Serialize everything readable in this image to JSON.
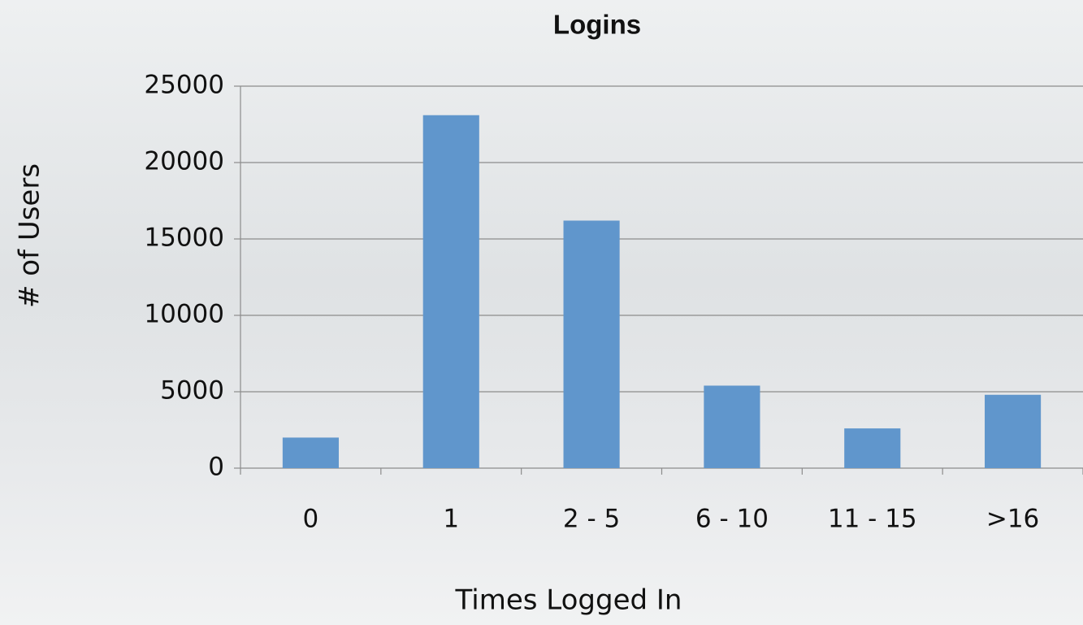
{
  "chart_data": {
    "type": "bar",
    "title": "Logins",
    "x_label": "Times Logged In",
    "y_label": "# of Users",
    "categories": [
      "0",
      "1",
      "2 - 5",
      "6 - 10",
      "11 - 15",
      ">16"
    ],
    "values": [
      2000,
      23100,
      16200,
      5400,
      2600,
      4800
    ],
    "color": "#6096cc",
    "ylim": [
      0,
      25000
    ],
    "yticks": [
      0,
      5000,
      10000,
      15000,
      20000,
      25000
    ],
    "grid": true
  }
}
